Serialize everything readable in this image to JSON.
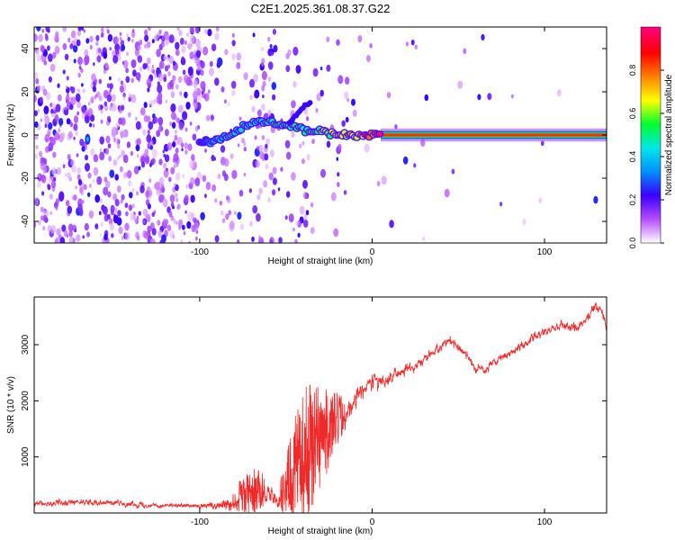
{
  "chart_data": [
    {
      "type": "heatmap",
      "title": "C2E1.2025.361.08.37.G22",
      "xlabel": "Height of straight line (km)",
      "ylabel": "Frequency (Hz)",
      "xlim": [
        -196,
        136
      ],
      "ylim": [
        -50,
        50
      ],
      "xticks": [
        -100,
        0,
        100
      ],
      "yticks": [
        -40,
        -20,
        0,
        20,
        40
      ],
      "colorbar": {
        "label": "Normalized spectral amplitude",
        "range": [
          0,
          1
        ],
        "ticks": [
          "0.0",
          "0.2",
          "0.4",
          "0.6",
          "0.8"
        ],
        "colors": [
          "#ffffff",
          "#b44cff",
          "#3a00ff",
          "#0090ff",
          "#00e6e6",
          "#00ff30",
          "#ffff00",
          "#ff8000",
          "#ff0000",
          "#ff0080"
        ]
      },
      "signal_track": [
        {
          "x": -100,
          "freq": -3,
          "amp": 0.25
        },
        {
          "x": -92,
          "freq": -3,
          "amp": 0.35
        },
        {
          "x": -80,
          "freq": 1,
          "amp": 0.45
        },
        {
          "x": -68,
          "freq": 6,
          "amp": 0.45
        },
        {
          "x": -56,
          "freq": 5,
          "amp": 0.5
        },
        {
          "x": -45,
          "freq": 4,
          "amp": 0.5
        },
        {
          "x": -35,
          "freq": 2,
          "amp": 0.55
        },
        {
          "x": -25,
          "freq": 1,
          "amp": 0.6
        },
        {
          "x": -15,
          "freq": 0,
          "amp": 0.7
        },
        {
          "x": -5,
          "freq": 0,
          "amp": 0.75
        },
        {
          "x": 5,
          "freq": 0,
          "amp": 0.9
        },
        {
          "x": 136,
          "freq": 0,
          "amp": 1.0
        }
      ]
    },
    {
      "type": "line",
      "xlabel": "Height of straight line (km)",
      "ylabel": "SNR (10 * v/v)",
      "xlim": [
        -196,
        136
      ],
      "ylim": [
        0,
        3850
      ],
      "xticks": [
        -100,
        0,
        100
      ],
      "yticks": [
        1000,
        2000,
        3000
      ],
      "line_color": "#ee2a2a",
      "series": [
        {
          "name": "SNR",
          "x": [
            -196,
            -180,
            -160,
            -140,
            -120,
            -100,
            -85,
            -75,
            -68,
            -60,
            -55,
            -45,
            -40,
            -35,
            -30,
            -25,
            -20,
            -15,
            -10,
            -5,
            0,
            10,
            20,
            30,
            40,
            45,
            50,
            55,
            60,
            65,
            70,
            80,
            90,
            100,
            110,
            120,
            125,
            130,
            133,
            136
          ],
          "y": [
            150,
            180,
            200,
            160,
            130,
            120,
            170,
            260,
            350,
            400,
            200,
            700,
            900,
            1100,
            1300,
            1400,
            1600,
            1800,
            2000,
            2200,
            2350,
            2400,
            2550,
            2750,
            2950,
            3100,
            2950,
            2800,
            2600,
            2550,
            2650,
            2850,
            3050,
            3250,
            3350,
            3300,
            3500,
            3700,
            3600,
            3300
          ],
          "noise": [
            60,
            80,
            60,
            60,
            50,
            50,
            150,
            350,
            400,
            250,
            150,
            900,
            1100,
            1300,
            900,
            700,
            500,
            250,
            250,
            200,
            200,
            150,
            120,
            100,
            100,
            100,
            100,
            100,
            100,
            100,
            100,
            100,
            100,
            100,
            100,
            100,
            100,
            120,
            100,
            100
          ]
        }
      ]
    }
  ]
}
